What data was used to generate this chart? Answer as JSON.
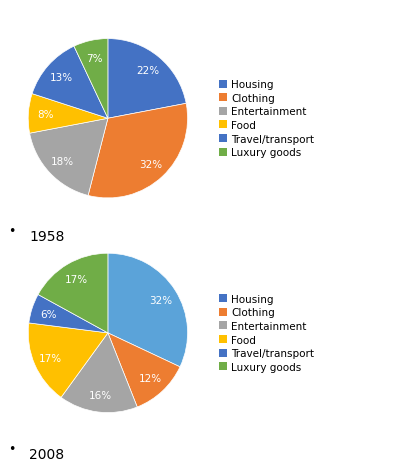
{
  "chart1": {
    "year": "1958",
    "values": [
      22,
      32,
      18,
      8,
      13,
      7
    ]
  },
  "chart2": {
    "year": "2008",
    "values": [
      32,
      12,
      16,
      17,
      6,
      17
    ]
  },
  "legend_labels": [
    "Housing",
    "Clothing",
    "Entertainment",
    "Food",
    "Travel/transport",
    "Luxury goods"
  ],
  "colors1": [
    "#4472c4",
    "#ed7d31",
    "#a5a5a5",
    "#ffc000",
    "#4472c4",
    "#70ad47"
  ],
  "colors2": [
    "#5ba3d9",
    "#ed7d31",
    "#a5a5a5",
    "#ffc000",
    "#4472c4",
    "#70ad47"
  ],
  "legend_colors": [
    "#4472c4",
    "#ed7d31",
    "#a5a5a5",
    "#ffc000",
    "#4472c4",
    "#70ad47"
  ],
  "background": "#ffffff",
  "pct_fontsize": 7.5,
  "legend_fontsize": 7.5
}
